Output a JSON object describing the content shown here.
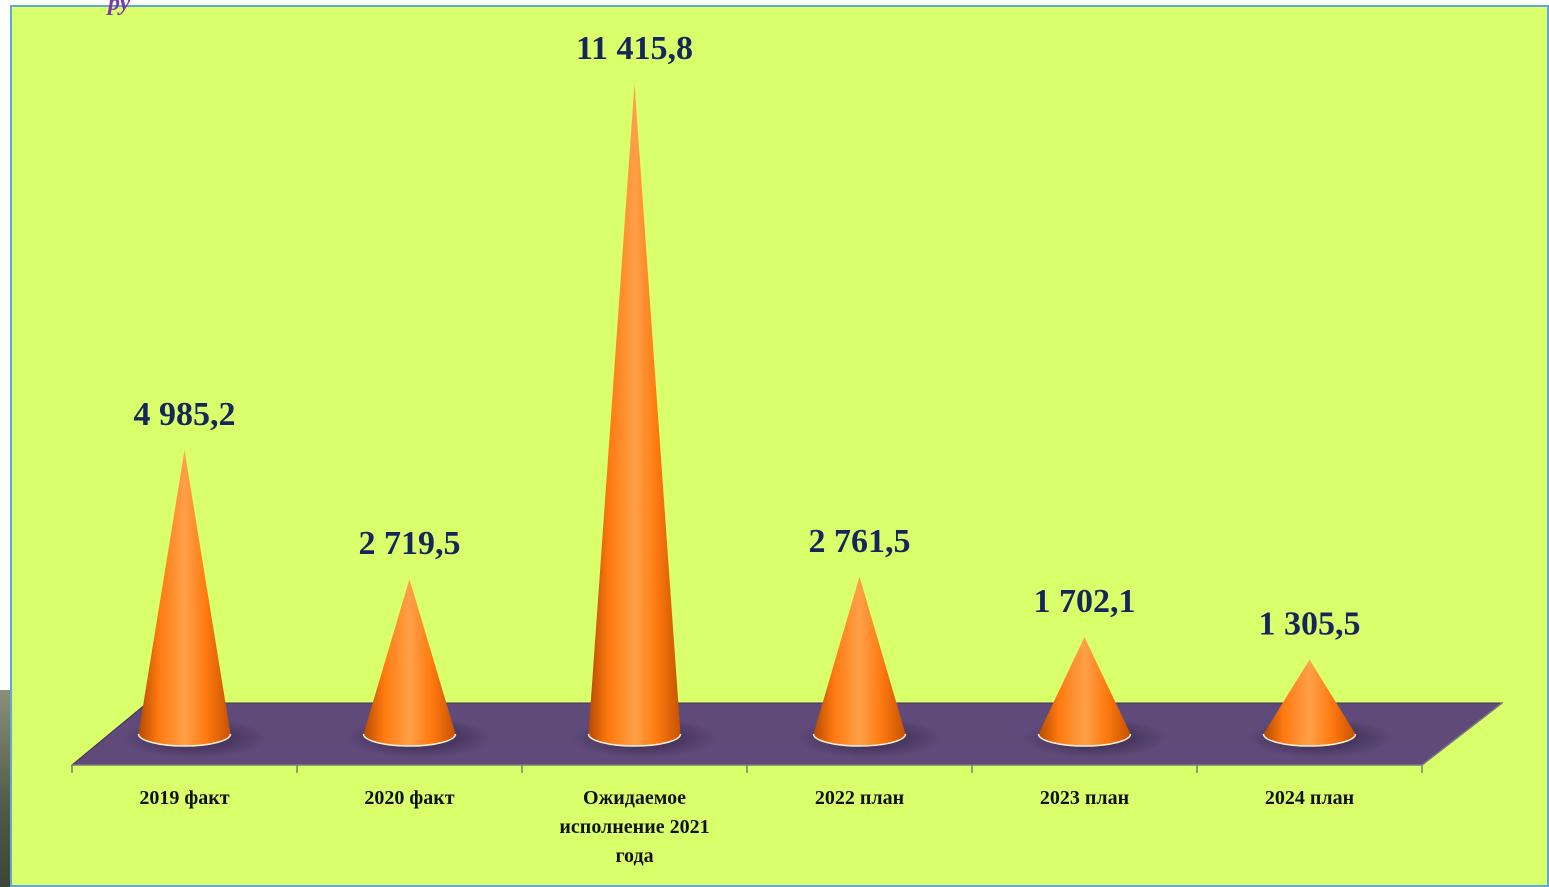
{
  "heading_fragment": "ру",
  "chart_data": {
    "type": "bar",
    "bar_shape": "cone",
    "categories": [
      "2019 факт",
      "2020 факт",
      "Ожидаемое исполнение 2021 года",
      "2022 план",
      "2023 план",
      "2024 план"
    ],
    "category_lines": [
      [
        "2019 факт"
      ],
      [
        "2020 факт"
      ],
      [
        "Ожидаемое",
        "исполнение 2021",
        "года"
      ],
      [
        "2022 план"
      ],
      [
        "2023 план"
      ],
      [
        "2024 план"
      ]
    ],
    "values": [
      4985.2,
      2719.5,
      11415.8,
      2761.5,
      1702.1,
      1305.5
    ],
    "value_labels": [
      "4 985,2",
      "2 719,5",
      "11 415,8",
      "2 761,5",
      "1 702,1",
      "1 305,5"
    ],
    "title": "",
    "xlabel": "",
    "ylabel": "",
    "grid": false,
    "legend": "none",
    "colors": {
      "background": "#d9ff6a",
      "floor": "#5f4a7a",
      "cone": "#ff7a10",
      "value_text": "#16265a",
      "category_text": "#111111"
    }
  }
}
